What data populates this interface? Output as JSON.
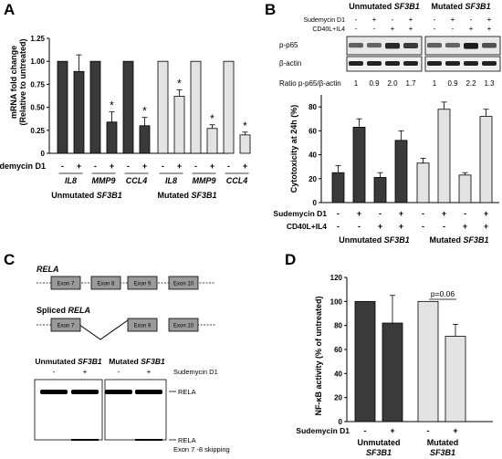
{
  "colors": {
    "dark": "#3a3a3a",
    "light": "#e3e3e3",
    "axis": "#000000",
    "gene_box": "#9a9a9a"
  },
  "panels": {
    "A": {
      "letter": "A",
      "y_label_1": "mRNA fold change",
      "y_label_2": "(Relative to untreated)",
      "y_ticks": [
        "0",
        "0.25",
        "0.50",
        "0.75",
        "1.00",
        "1.25"
      ],
      "treatment_label": "Sudemycin D1",
      "pm": [
        "-",
        "+"
      ],
      "genes": [
        "IL8",
        "MMP9",
        "CCL4",
        "IL8",
        "MMP9",
        "CCL4"
      ],
      "groups": [
        "Unmutated SF3B1",
        "Mutated SF3B1"
      ],
      "star": "*"
    },
    "B": {
      "letter": "B",
      "blot_groups": [
        "Unmutated SF3B1",
        "Mutated SF3B1"
      ],
      "row_labels": [
        "Sudemycin D1",
        "CD40L+IL4"
      ],
      "blot_labels": [
        "p-p65",
        "β-actin"
      ],
      "ratio_label": "Ratio p-p65/β-actin",
      "ratios": [
        "1",
        "0.9",
        "2.0",
        "1.7",
        "1",
        "0.9",
        "2.2",
        "1.3"
      ],
      "blot_signs": {
        "sud": [
          "-",
          "+",
          "-",
          "+",
          "-",
          "+",
          "-",
          "+"
        ],
        "cd40": [
          "-",
          "-",
          "+",
          "+",
          "-",
          "-",
          "+",
          "+"
        ]
      },
      "y_label": "Cytotoxicity at 24h (%)",
      "y_ticks": [
        "0",
        "20",
        "40",
        "60",
        "80"
      ],
      "x_row_labels": [
        "Sudemycin D1",
        "CD40L+IL4"
      ],
      "groups": [
        "Unmutated SF3B1",
        "Mutated SF3B1"
      ]
    },
    "C": {
      "letter": "C",
      "rela_label": "RELA",
      "spliced_label": "Spliced RELA",
      "exons": [
        "Exon 7",
        "Exon 8",
        "Exon 9",
        "Exon 10"
      ],
      "spliced_exons": [
        "Exon 7",
        "Exon 9",
        "Exon 10"
      ],
      "gel_groups": [
        "Unmutated SF3B1",
        "Mutated SF3B1"
      ],
      "gel_signs": [
        "-",
        "+",
        "-",
        "+"
      ],
      "treatment_label": "Sudemycin D1",
      "band_label_top": "RELA",
      "band_label_bottom_1": "RELA",
      "band_label_bottom_2": "Exon 7 -8 skipping"
    },
    "D": {
      "letter": "D",
      "y_label_1": "NF-κB activity (% of untreated)",
      "y_ticks": [
        "0",
        "20",
        "40",
        "60",
        "80",
        "100",
        "120"
      ],
      "pvalue": "p=0.06",
      "treatment_label": "Sudemycin D1",
      "pm": [
        "-",
        "+",
        "-",
        "+"
      ],
      "groups_line1": [
        "Unmutated",
        "Mutated"
      ],
      "groups_line2": [
        "SF3B1",
        "SF3B1"
      ]
    }
  },
  "chart_data": [
    {
      "panel": "A",
      "type": "bar",
      "ylabel": "mRNA fold change (Relative to untreated)",
      "ylim": [
        0,
        1.25
      ],
      "categories": [
        "IL8 -",
        "IL8 +",
        "MMP9 -",
        "MMP9 +",
        "CCL4 -",
        "CCL4 +"
      ],
      "series": [
        {
          "name": "Unmutated SF3B1",
          "color": "#3a3a3a",
          "values": [
            1.0,
            0.89,
            1.0,
            0.34,
            1.0,
            0.3
          ],
          "errors": [
            0,
            0.18,
            0,
            0.11,
            0,
            0.09
          ],
          "significant": [
            false,
            false,
            false,
            true,
            false,
            true
          ]
        },
        {
          "name": "Mutated SF3B1",
          "color": "#e3e3e3",
          "values": [
            1.0,
            0.62,
            1.0,
            0.27,
            1.0,
            0.2
          ],
          "errors": [
            0,
            0.07,
            0,
            0.04,
            0,
            0.03
          ],
          "significant": [
            false,
            true,
            false,
            true,
            false,
            true
          ]
        }
      ]
    },
    {
      "panel": "B",
      "type": "bar",
      "ylabel": "Cytotoxicity at 24h (%)",
      "ylim": [
        0,
        90
      ],
      "categories": [
        "- / -",
        "+ / -",
        "- / +",
        "+ / +"
      ],
      "series": [
        {
          "name": "Unmutated SF3B1",
          "color": "#3a3a3a",
          "values": [
            25,
            63,
            21,
            52
          ],
          "errors": [
            6,
            7,
            4,
            8
          ]
        },
        {
          "name": "Mutated SF3B1",
          "color": "#e3e3e3",
          "values": [
            33,
            78,
            23,
            72
          ],
          "errors": [
            4,
            6,
            2,
            6
          ]
        }
      ]
    },
    {
      "panel": "D",
      "type": "bar",
      "ylabel": "NF-κB activity (% of untreated)",
      "ylim": [
        0,
        120
      ],
      "categories": [
        "-",
        "+"
      ],
      "series": [
        {
          "name": "Unmutated SF3B1",
          "color": "#3a3a3a",
          "values": [
            100,
            82
          ],
          "errors": [
            0,
            23
          ]
        },
        {
          "name": "Mutated SF3B1",
          "color": "#e3e3e3",
          "values": [
            100,
            71
          ],
          "errors": [
            0,
            10
          ]
        }
      ]
    }
  ]
}
